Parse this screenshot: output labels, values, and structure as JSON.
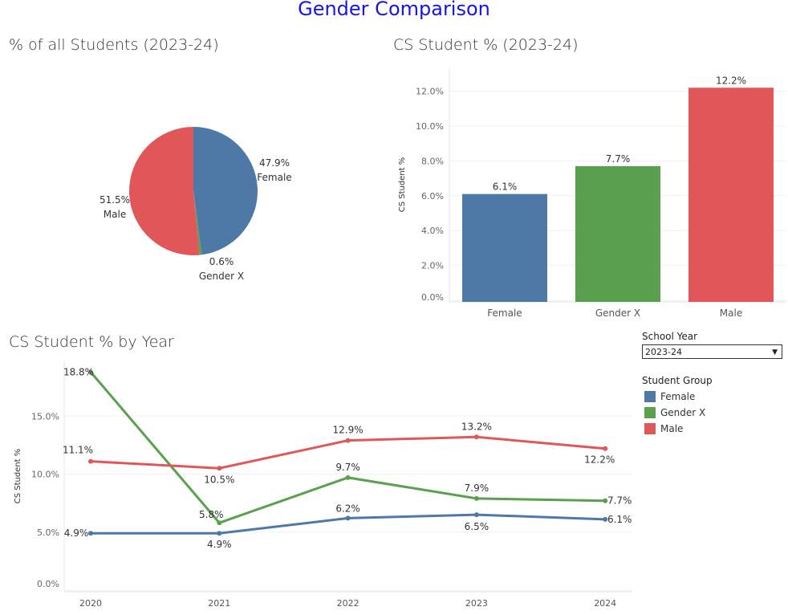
{
  "title": "Gender Comparison",
  "colors": {
    "Female": "#4e79a7",
    "Gender X": "#59a14f",
    "Male": "#e15759"
  },
  "filters": {
    "school_year_label": "School Year",
    "school_year_value": "2023-24",
    "legend_title": "Student Group",
    "legend": [
      "Female",
      "Gender X",
      "Male"
    ]
  },
  "chart_data": [
    {
      "type": "pie",
      "title": "% of all Students (2023-24)",
      "categories": [
        "Female",
        "Gender X",
        "Male"
      ],
      "values": [
        47.9,
        0.6,
        51.5
      ],
      "labels": [
        "47.9%",
        "0.6%",
        "51.5%"
      ]
    },
    {
      "type": "bar",
      "title": "CS Student % (2023-24)",
      "ylabel": "CS Student %",
      "categories": [
        "Female",
        "Gender X",
        "Male"
      ],
      "values": [
        6.1,
        7.7,
        12.2
      ],
      "labels": [
        "6.1%",
        "7.7%",
        "12.2%"
      ],
      "ylim": [
        0,
        13
      ],
      "yticks": [
        "0.0%",
        "2.0%",
        "4.0%",
        "6.0%",
        "8.0%",
        "10.0%",
        "12.0%"
      ],
      "grid": true
    },
    {
      "type": "line",
      "title": "CS Student % by Year",
      "ylabel": "CS Student %",
      "x": [
        "2020",
        "2021",
        "2022",
        "2023",
        "2024"
      ],
      "ylim": [
        0,
        19
      ],
      "yticks": [
        "0.0%",
        "5.0%",
        "10.0%",
        "15.0%"
      ],
      "grid": true,
      "series": [
        {
          "name": "Female",
          "values": [
            4.9,
            4.9,
            6.2,
            6.5,
            6.1
          ]
        },
        {
          "name": "Gender X",
          "values": [
            18.8,
            5.8,
            9.7,
            7.9,
            7.7
          ]
        },
        {
          "name": "Male",
          "values": [
            11.1,
            10.5,
            12.9,
            13.2,
            12.2
          ]
        }
      ]
    }
  ]
}
